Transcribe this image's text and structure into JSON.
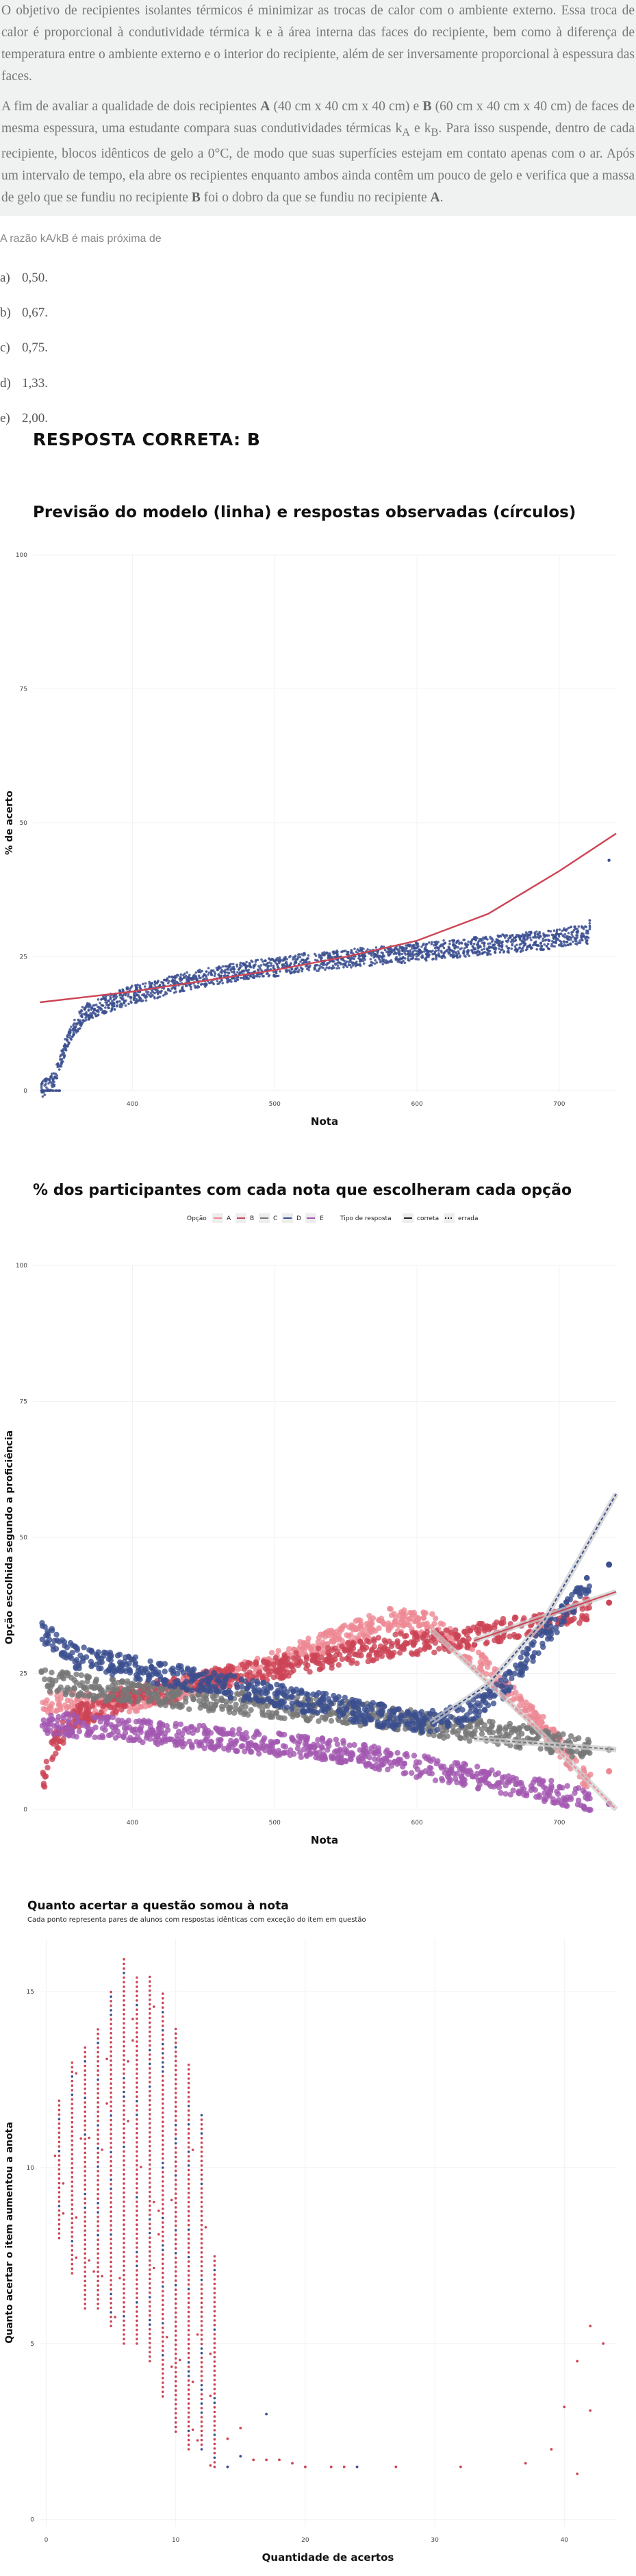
{
  "question": {
    "paragraph1": "O objetivo de recipientes isolantes térmicos é minimizar as trocas de calor com o ambiente externo. Essa troca de calor é proporcional à condutividade térmica k e à área interna das faces do recipiente, bem como à diferença de temperatura entre o ambiente externo e o interior do recipiente, além de ser inversamente proporcional à espessura das faces.",
    "p2_a": "A fim de avaliar a qualidade de dois recipientes ",
    "p2_A": "A",
    "p2_b": " (40 cm x 40 cm x 40 cm) e ",
    "p2_B": "B",
    "p2_c": " (60 cm x 40 cm x 40 cm) de faces de mesma espessura, uma estudante compara suas condutividades térmicas k",
    "p2_sub_a": "A",
    "p2_d": " e k",
    "p2_sub_b": "B",
    "p2_e": ". Para isso suspende, dentro de cada recipiente, blocos idênticos de gelo a 0°C, de modo que suas superfícies estejam em contato apenas com o ar. Após um intervalo de tempo, ela abre os recipientes enquanto ambos ainda contêm um pouco de gelo e verifica que a massa de gelo que se fundiu no recipiente ",
    "p2_B2": "B",
    "p2_f": " foi o dobro da que se fundiu no recipiente ",
    "p2_A2": "A",
    "p2_g": ".",
    "prompt": "A razão kA/kB é mais próxima de",
    "alternatives": [
      {
        "letter": "a)",
        "text": "0,50."
      },
      {
        "letter": "b)",
        "text": "0,67."
      },
      {
        "letter": "c)",
        "text": "0,75."
      },
      {
        "letter": "d)",
        "text": "1,33."
      },
      {
        "letter": "e)",
        "text": "2,00."
      }
    ],
    "answer": "RESPOSTA CORRETA: B"
  },
  "colors": {
    "red": "#cc4455",
    "blue": "#3b4f8f",
    "pink": "#ee8894",
    "gray": "#777777",
    "purple": "#a257b0",
    "lightpink": "#e9a9c8"
  },
  "chart_data": [
    {
      "type": "scatter",
      "title": "Previsão do modelo (linha) e respostas observadas (círculos)",
      "xlabel": "Nota",
      "ylabel": "% de acerto",
      "x_ticks": [
        "400",
        "500",
        "600",
        "700"
      ],
      "y_ticks": [
        "0",
        "25",
        "50",
        "75",
        "100"
      ],
      "xlim": [
        330,
        740
      ],
      "ylim": [
        0,
        100
      ],
      "grid": true,
      "series": [
        {
          "kind": "points",
          "color": "blue",
          "x": [
            335,
            345,
            350,
            355,
            360,
            365,
            370,
            380,
            390,
            400,
            410,
            420,
            430,
            440,
            450,
            460,
            470,
            480,
            490,
            500,
            510,
            520,
            530,
            540,
            550,
            560,
            570,
            580,
            590,
            600,
            610,
            620,
            630,
            640,
            650,
            660,
            670,
            680,
            690,
            700,
            710,
            720,
            735
          ],
          "y": [
            0,
            2,
            6,
            10,
            12,
            14,
            15,
            16,
            17,
            18,
            18.5,
            19,
            20,
            20.5,
            21,
            21.5,
            22,
            22.5,
            23,
            23,
            23.5,
            24,
            24,
            24.5,
            24.5,
            25,
            25,
            25.5,
            25.5,
            26,
            26,
            26.5,
            26.5,
            27,
            27,
            27.5,
            27.5,
            28,
            28,
            28.5,
            29,
            29,
            43
          ]
        },
        {
          "kind": "line",
          "color": "red",
          "x": [
            335,
            400,
            450,
            500,
            550,
            600,
            650,
            700,
            740
          ],
          "y": [
            16.5,
            18.5,
            20.5,
            22.5,
            25,
            28,
            33,
            41,
            48
          ]
        }
      ]
    },
    {
      "type": "scatter",
      "title": "% dos participantes com cada nota que escolheram cada opção",
      "legend_option_label": "Opção",
      "legend_options": [
        "A",
        "B",
        "C",
        "D",
        "E"
      ],
      "legend_type_label": "Tipo de resposta",
      "legend_types": [
        "correta",
        "errada"
      ],
      "legend_position": "top",
      "xlabel": "Nota",
      "ylabel": "Opção escolhida segundo a proficiência",
      "x_ticks": [
        "400",
        "500",
        "600",
        "700"
      ],
      "y_ticks": [
        "0",
        "25",
        "50",
        "75",
        "100"
      ],
      "xlim": [
        330,
        740
      ],
      "ylim": [
        0,
        100
      ],
      "grid": true,
      "series": [
        {
          "name": "A",
          "color": "pink",
          "x": [
            335,
            380,
            420,
            460,
            500,
            540,
            580,
            610,
            640,
            670,
            700,
            720,
            735
          ],
          "y": [
            20,
            19,
            21,
            24,
            27,
            31,
            35,
            34,
            28,
            20,
            12,
            5,
            7
          ]
        },
        {
          "name": "B",
          "color": "red",
          "x": [
            335,
            345,
            360,
            380,
            400,
            430,
            460,
            500,
            540,
            580,
            620,
            660,
            700,
            735
          ],
          "y": [
            3,
            12,
            17,
            19,
            21,
            22,
            24,
            26,
            28,
            30,
            31,
            33,
            35,
            38
          ]
        },
        {
          "name": "C",
          "color": "gray",
          "x": [
            335,
            380,
            420,
            460,
            500,
            540,
            580,
            620,
            660,
            700,
            735
          ],
          "y": [
            24,
            22,
            21,
            20,
            19,
            18,
            17,
            15,
            14,
            12,
            11
          ]
        },
        {
          "name": "D",
          "color": "blue",
          "x": [
            335,
            360,
            400,
            440,
            480,
            520,
            560,
            600,
            630,
            660,
            690,
            710,
            735
          ],
          "y": [
            33,
            28,
            26,
            24,
            22,
            20,
            18,
            16,
            17,
            22,
            32,
            38,
            45
          ]
        },
        {
          "name": "E",
          "color": "purple",
          "x": [
            335,
            380,
            420,
            460,
            500,
            540,
            580,
            620,
            660,
            700,
            735
          ],
          "y": [
            16,
            15,
            14,
            13,
            12,
            11,
            9,
            7,
            5,
            3,
            1
          ]
        }
      ]
    },
    {
      "type": "scatter",
      "title": "Quanto acertar a questão somou à nota",
      "subtitle": "Cada ponto representa pares de alunos com respostas idênticas com exceção do item em questão",
      "xlabel": "Quantidade de acertos",
      "ylabel": "Quanto acertar o item aumentou a anota",
      "x_ticks": [
        "0",
        "10",
        "20",
        "30",
        "40"
      ],
      "y_ticks": [
        "0",
        "5",
        "10",
        "15"
      ],
      "xlim": [
        -0.5,
        44
      ],
      "ylim": [
        -0.2,
        16.5
      ],
      "grid": true,
      "columns": [
        {
          "x": 1,
          "ymin": 8,
          "ymax": 12
        },
        {
          "x": 2,
          "ymin": 7,
          "ymax": 13
        },
        {
          "x": 3,
          "ymin": 6,
          "ymax": 13.5
        },
        {
          "x": 4,
          "ymin": 6,
          "ymax": 14
        },
        {
          "x": 5,
          "ymin": 5.5,
          "ymax": 15
        },
        {
          "x": 6,
          "ymin": 5,
          "ymax": 16
        },
        {
          "x": 7,
          "ymin": 5,
          "ymax": 15.5
        },
        {
          "x": 8,
          "ymin": 4.5,
          "ymax": 15.5
        },
        {
          "x": 9,
          "ymin": 3.5,
          "ymax": 15
        },
        {
          "x": 10,
          "ymin": 2.5,
          "ymax": 14
        },
        {
          "x": 11,
          "ymin": 2,
          "ymax": 13
        },
        {
          "x": 12,
          "ymin": 2,
          "ymax": 11.5
        },
        {
          "x": 13,
          "ymin": 1.5,
          "ymax": 7.5
        }
      ],
      "scattered": [
        {
          "x": 14,
          "y": 1.5
        },
        {
          "x": 14,
          "y": 2.3
        },
        {
          "x": 15,
          "y": 1.8
        },
        {
          "x": 15,
          "y": 2.6
        },
        {
          "x": 16,
          "y": 1.7
        },
        {
          "x": 17,
          "y": 1.7
        },
        {
          "x": 17,
          "y": 3.0
        },
        {
          "x": 18,
          "y": 1.7
        },
        {
          "x": 19,
          "y": 1.6
        },
        {
          "x": 20,
          "y": 1.5
        },
        {
          "x": 22,
          "y": 1.5
        },
        {
          "x": 23,
          "y": 1.5
        },
        {
          "x": 24,
          "y": 1.5
        },
        {
          "x": 27,
          "y": 1.5
        },
        {
          "x": 32,
          "y": 1.5
        },
        {
          "x": 37,
          "y": 1.6
        },
        {
          "x": 39,
          "y": 2.0
        },
        {
          "x": 40,
          "y": 3.2
        },
        {
          "x": 41,
          "y": 1.3
        },
        {
          "x": 41,
          "y": 4.5
        },
        {
          "x": 42,
          "y": 3.1
        },
        {
          "x": 42,
          "y": 5.5
        },
        {
          "x": 43,
          "y": 5.0
        }
      ]
    }
  ]
}
